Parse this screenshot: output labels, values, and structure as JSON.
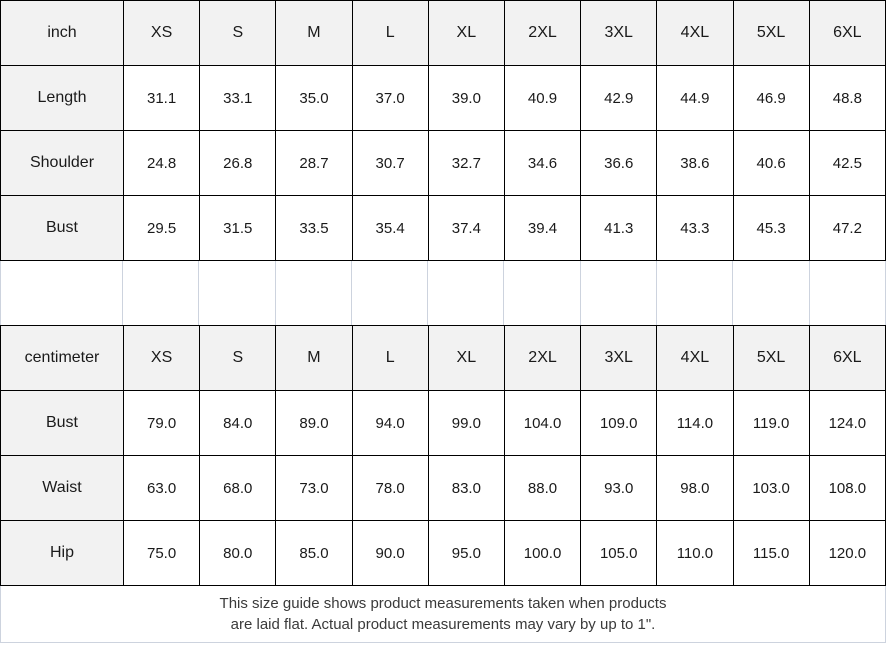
{
  "chart_data": [
    {
      "type": "table",
      "unit": "inch",
      "columns": [
        "XS",
        "S",
        "M",
        "L",
        "XL",
        "2XL",
        "3XL",
        "4XL",
        "5XL",
        "6XL"
      ],
      "rows": [
        {
          "label": "Length",
          "values": [
            "31.1",
            "33.1",
            "35.0",
            "37.0",
            "39.0",
            "40.9",
            "42.9",
            "44.9",
            "46.9",
            "48.8"
          ]
        },
        {
          "label": "Shoulder",
          "values": [
            "24.8",
            "26.8",
            "28.7",
            "30.7",
            "32.7",
            "34.6",
            "36.6",
            "38.6",
            "40.6",
            "42.5"
          ]
        },
        {
          "label": "Bust",
          "values": [
            "29.5",
            "31.5",
            "33.5",
            "35.4",
            "37.4",
            "39.4",
            "41.3",
            "43.3",
            "45.3",
            "47.2"
          ]
        }
      ]
    },
    {
      "type": "table",
      "unit": "centimeter",
      "columns": [
        "XS",
        "S",
        "M",
        "L",
        "XL",
        "2XL",
        "3XL",
        "4XL",
        "5XL",
        "6XL"
      ],
      "rows": [
        {
          "label": "Bust",
          "values": [
            "79.0",
            "84.0",
            "89.0",
            "94.0",
            "99.0",
            "104.0",
            "109.0",
            "114.0",
            "119.0",
            "124.0"
          ]
        },
        {
          "label": "Waist",
          "values": [
            "63.0",
            "68.0",
            "73.0",
            "78.0",
            "83.0",
            "88.0",
            "93.0",
            "98.0",
            "103.0",
            "108.0"
          ]
        },
        {
          "label": "Hip",
          "values": [
            "75.0",
            "80.0",
            "85.0",
            "90.0",
            "95.0",
            "100.0",
            "105.0",
            "110.0",
            "115.0",
            "120.0"
          ]
        }
      ]
    }
  ],
  "footer": {
    "line1": "This size guide shows product measurements taken when products",
    "line2": "are laid flat. Actual product measurements may vary by up to 1\"."
  },
  "colors": {
    "header_bg": "#f2f2f2",
    "table_border": "#000000",
    "gridline": "#cdd3de",
    "text": "#1a1a1a",
    "footer_text": "#3a3a3a"
  }
}
